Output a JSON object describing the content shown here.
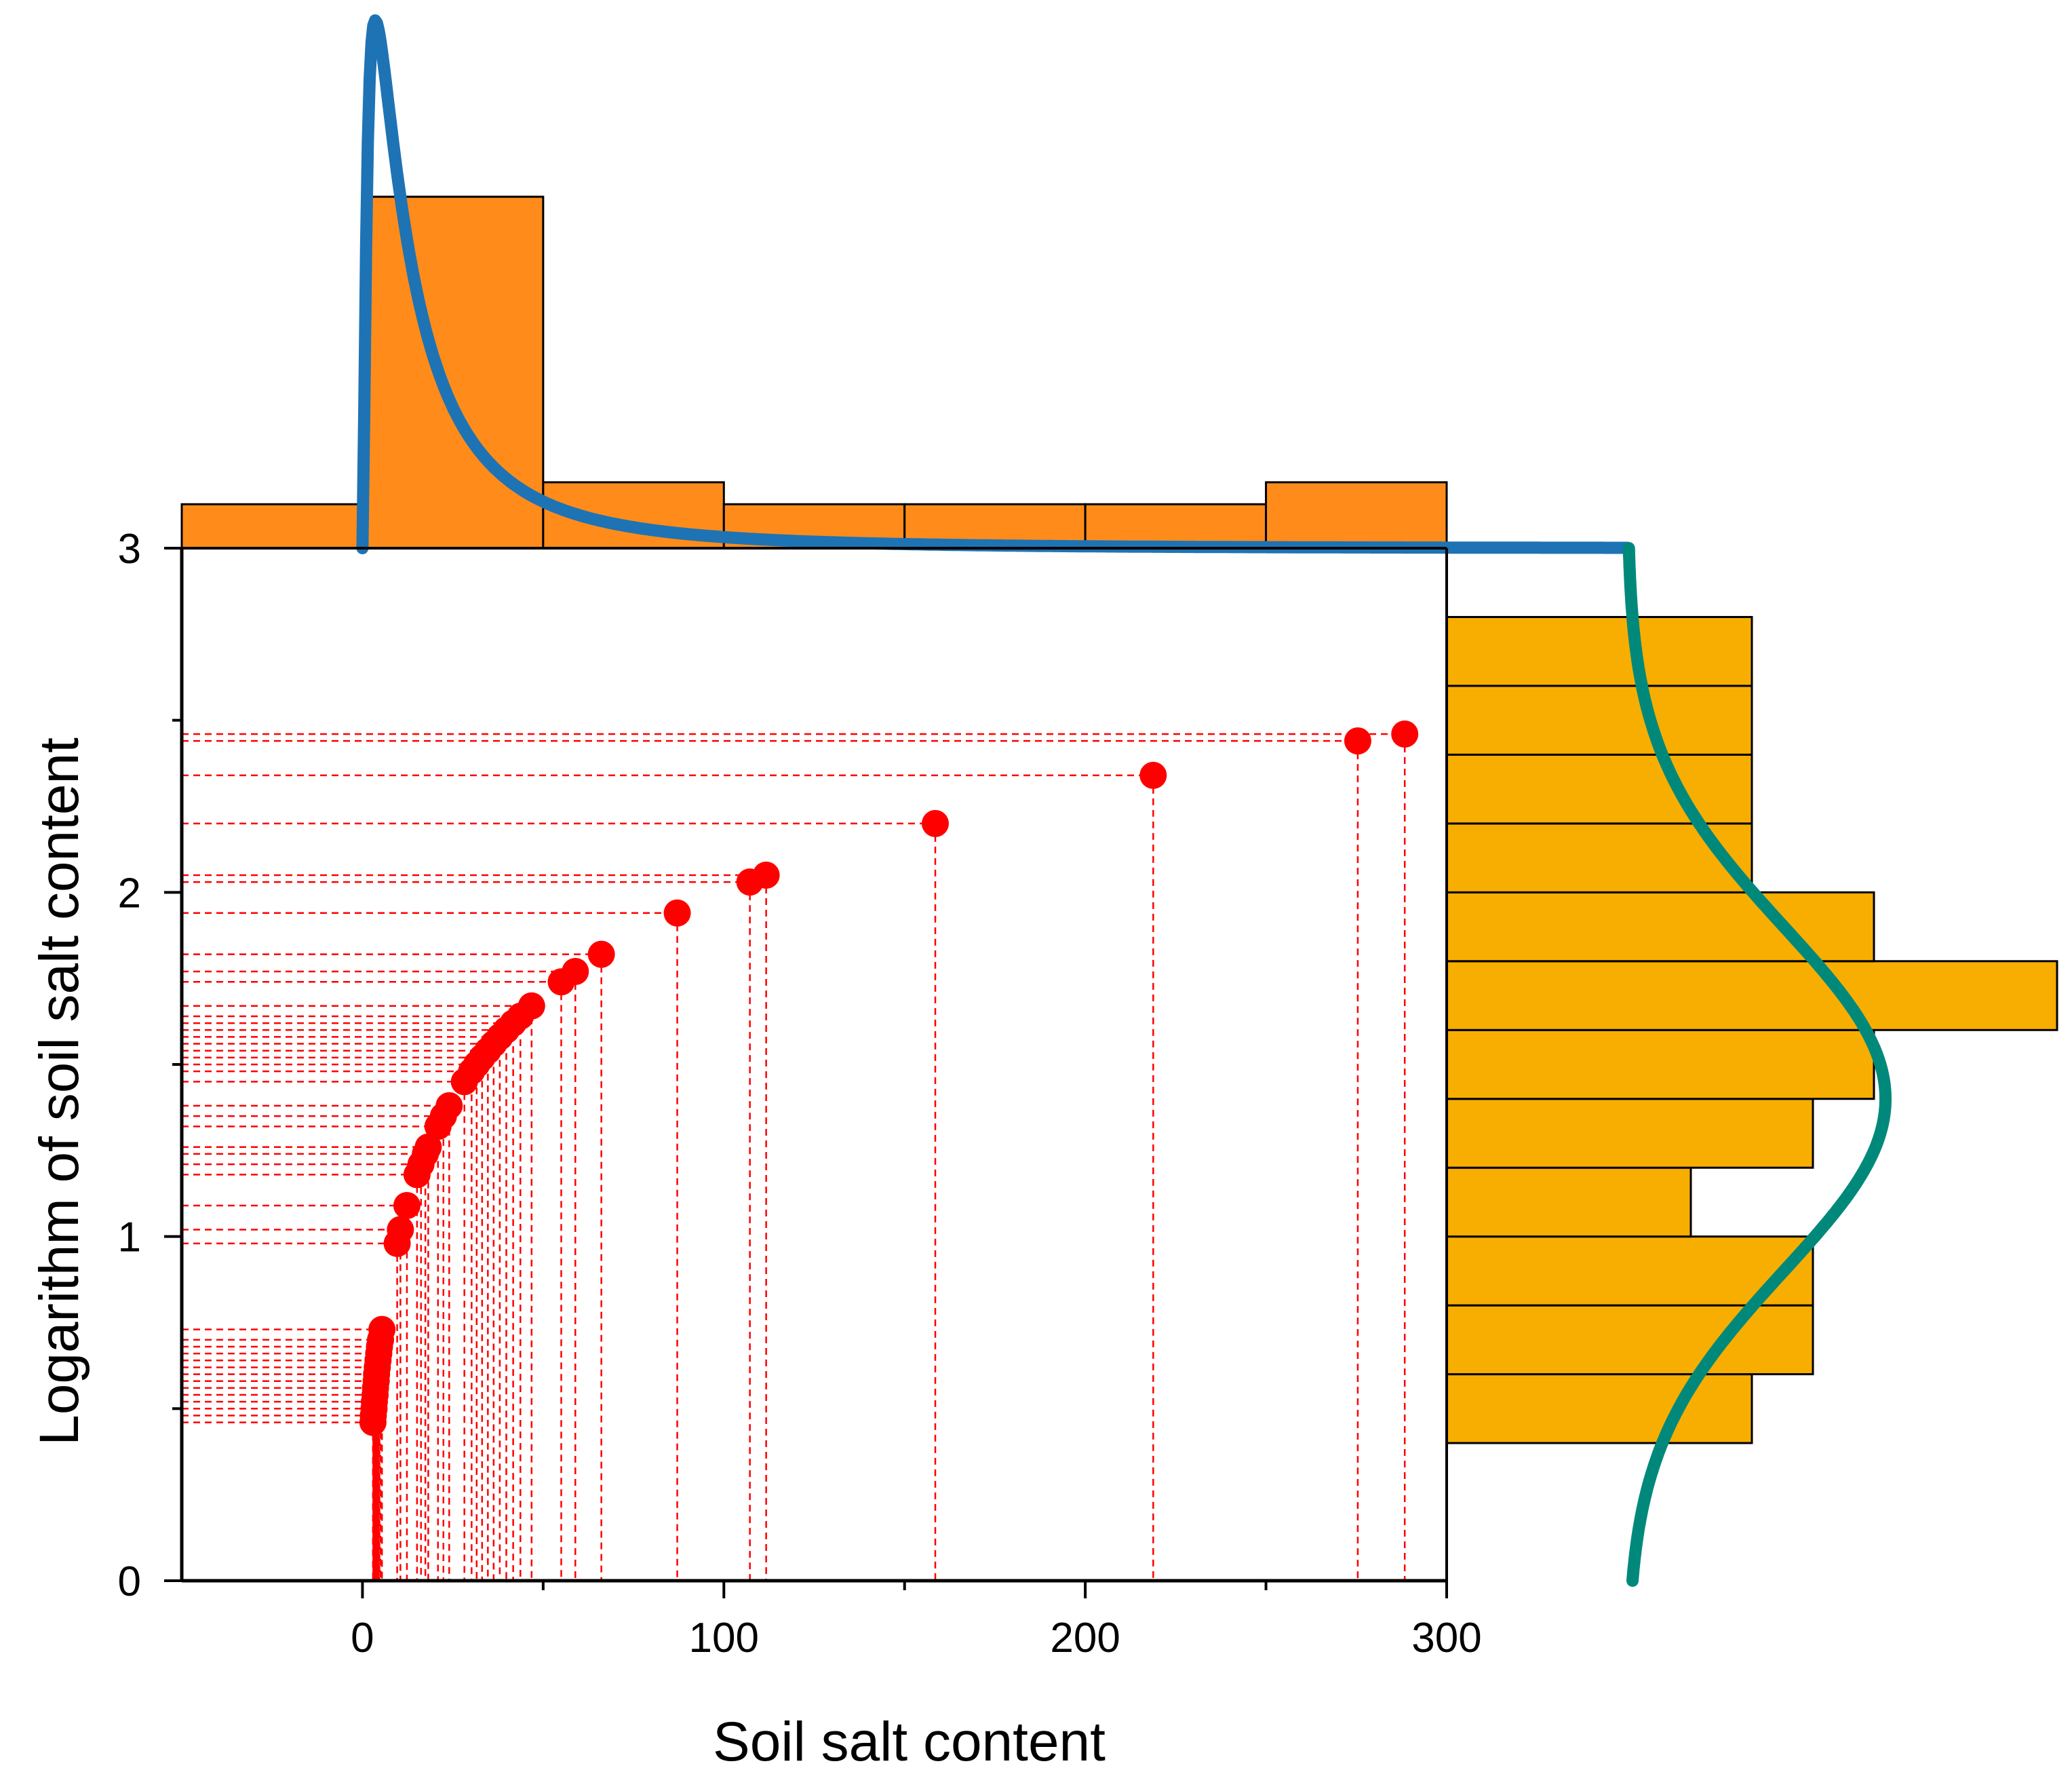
{
  "chart_data": {
    "type": "scatter",
    "xlabel": "Soil salt content",
    "ylabel": "Logarithm of soil salt content",
    "xlim": [
      -50,
      300
    ],
    "ylim": [
      0,
      3
    ],
    "x_ticks": [
      0,
      100,
      200,
      300
    ],
    "x_tick_labels": [
      "0",
      "100",
      "200",
      "300"
    ],
    "y_ticks": [
      0,
      1,
      2,
      3
    ],
    "y_tick_labels": [
      "0",
      "1",
      "2",
      "3"
    ],
    "series": [
      {
        "name": "samples",
        "color": "#ff0000",
        "guide_lines": "dashed drop lines to both axes",
        "points": [
          [
            2.9,
            0.46
          ],
          [
            3.0,
            0.48
          ],
          [
            3.2,
            0.5
          ],
          [
            3.3,
            0.52
          ],
          [
            3.5,
            0.54
          ],
          [
            3.6,
            0.56
          ],
          [
            3.8,
            0.58
          ],
          [
            3.9,
            0.6
          ],
          [
            4.1,
            0.62
          ],
          [
            4.3,
            0.64
          ],
          [
            4.5,
            0.66
          ],
          [
            4.7,
            0.68
          ],
          [
            5.0,
            0.7
          ],
          [
            5.4,
            0.73
          ],
          [
            9.6,
            0.98
          ],
          [
            10.5,
            1.02
          ],
          [
            12.3,
            1.09
          ],
          [
            15.1,
            1.18
          ],
          [
            16.2,
            1.21
          ],
          [
            17.4,
            1.24
          ],
          [
            18.2,
            1.26
          ],
          [
            20.9,
            1.32
          ],
          [
            22.4,
            1.35
          ],
          [
            24.0,
            1.38
          ],
          [
            28.2,
            1.45
          ],
          [
            30.2,
            1.48
          ],
          [
            31.6,
            1.5
          ],
          [
            33.1,
            1.52
          ],
          [
            34.7,
            1.54
          ],
          [
            36.3,
            1.56
          ],
          [
            38.0,
            1.58
          ],
          [
            39.8,
            1.6
          ],
          [
            41.7,
            1.62
          ],
          [
            43.7,
            1.64
          ],
          [
            46.8,
            1.67
          ],
          [
            55.0,
            1.74
          ],
          [
            58.9,
            1.77
          ],
          [
            66.1,
            1.82
          ],
          [
            87.1,
            1.94
          ],
          [
            107.2,
            2.03
          ],
          [
            111.7,
            2.05
          ],
          [
            158.5,
            2.2
          ],
          [
            218.8,
            2.34
          ],
          [
            275.4,
            2.44
          ],
          [
            288.4,
            2.46
          ]
        ]
      }
    ],
    "top_histogram": {
      "color": "#ff8c1a",
      "bin_edges": [
        -50,
        0,
        50,
        100,
        150,
        200,
        250,
        300
      ],
      "counts": [
        2,
        16,
        3,
        2,
        2,
        2,
        3
      ],
      "density_curve": {
        "type": "lognormal",
        "color": "#1e73b4"
      }
    },
    "right_histogram": {
      "color": "#f7ae00",
      "bin_edges": [
        0.4,
        0.6,
        0.8,
        1.0,
        1.2,
        1.4,
        1.6,
        1.8,
        2.0,
        2.2,
        2.4,
        2.6,
        2.8
      ],
      "counts": [
        5,
        6,
        6,
        4,
        6,
        7,
        10,
        7,
        5,
        5,
        5,
        5
      ],
      "density_curve": {
        "type": "normal",
        "mean": 1.4,
        "sd": 0.5,
        "color": "#00897b"
      }
    }
  }
}
